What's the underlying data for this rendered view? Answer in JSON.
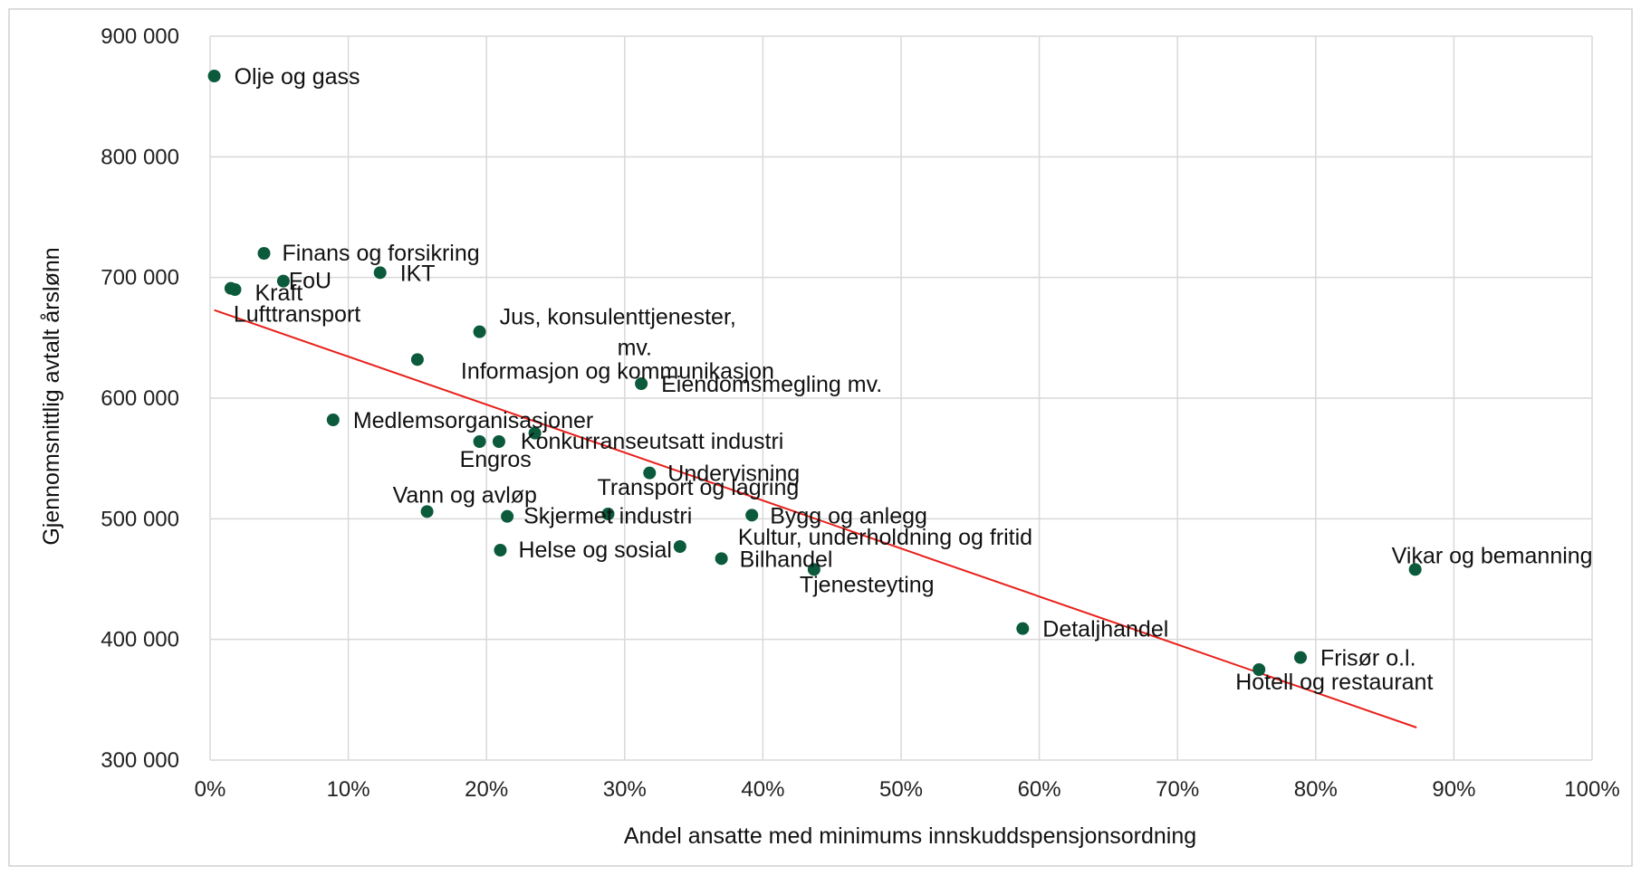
{
  "chart_data": {
    "type": "scatter",
    "title": "",
    "xlabel": "Andel ansatte med minimums innskuddspensjonsordning",
    "ylabel": "Gjennomsnittlig avtalt årslønn",
    "xlim": [
      0,
      1
    ],
    "ylim": [
      300000,
      900000
    ],
    "x_ticks": [
      0,
      0.1,
      0.2,
      0.3,
      0.4,
      0.5,
      0.6,
      0.7,
      0.8,
      0.9,
      1.0
    ],
    "x_tick_labels": [
      "0%",
      "10%",
      "20%",
      "30%",
      "40%",
      "50%",
      "60%",
      "70%",
      "80%",
      "90%",
      "100%"
    ],
    "y_ticks": [
      300000,
      400000,
      500000,
      600000,
      700000,
      800000,
      900000
    ],
    "y_tick_labels": [
      "300 000",
      "400 000",
      "500 000",
      "600 000",
      "700 000",
      "800 000",
      "900 000"
    ],
    "grid": true,
    "legend": "none",
    "colors": {
      "point": "#0b5a3c",
      "trendline": "#e8201a",
      "grid": "#d9d9d9"
    },
    "trendline": {
      "x": [
        0.003,
        0.873
      ],
      "y": [
        673000,
        327000
      ]
    },
    "points": [
      {
        "label": "Olje og gass",
        "x": 0.003,
        "y": 867000
      },
      {
        "label": "Finans og forsikring",
        "x": 0.039,
        "y": 720000
      },
      {
        "label": "FoU",
        "x": 0.053,
        "y": 697000
      },
      {
        "label": "Kraft",
        "x": 0.018,
        "y": 690000
      },
      {
        "label": "Lufttransport",
        "x": 0.015,
        "y": 691000
      },
      {
        "label": "IKT",
        "x": 0.123,
        "y": 704000
      },
      {
        "label": "Jus, konsulenttjenester, mv.",
        "x": 0.195,
        "y": 655000
      },
      {
        "label": "Informasjon og kommunikasjon",
        "x": 0.15,
        "y": 632000
      },
      {
        "label": "Eiendomsmegling mv.",
        "x": 0.312,
        "y": 612000
      },
      {
        "label": "Medlemsorganisasjoner",
        "x": 0.089,
        "y": 582000
      },
      {
        "label": "Konkurranseutsatt industri",
        "x": 0.209,
        "y": 564000
      },
      {
        "label": "Engros",
        "x": 0.195,
        "y": 564000
      },
      {
        "label": "",
        "x": 0.235,
        "y": 571000
      },
      {
        "label": "Undervisning",
        "x": 0.318,
        "y": 538000
      },
      {
        "label": "Vann og avløp",
        "x": 0.157,
        "y": 506000
      },
      {
        "label": "Skjermet industri",
        "x": 0.215,
        "y": 502000
      },
      {
        "label": "Transport og lagring",
        "x": 0.288,
        "y": 504000
      },
      {
        "label": "Bygg og anlegg",
        "x": 0.392,
        "y": 503000
      },
      {
        "label": "Helse og sosial",
        "x": 0.21,
        "y": 474000
      },
      {
        "label": "Kultur, underholdning og fritid",
        "x": 0.34,
        "y": 477000
      },
      {
        "label": "Bilhandel",
        "x": 0.37,
        "y": 467000
      },
      {
        "label": "Tjenesteyting",
        "x": 0.437,
        "y": 458000
      },
      {
        "label": "Vikar og bemanning",
        "x": 0.872,
        "y": 458000
      },
      {
        "label": "Detaljhandel",
        "x": 0.588,
        "y": 409000
      },
      {
        "label": "Frisør o.l.",
        "x": 0.789,
        "y": 385000
      },
      {
        "label": "Hotell og restaurant",
        "x": 0.759,
        "y": 375000
      }
    ]
  }
}
